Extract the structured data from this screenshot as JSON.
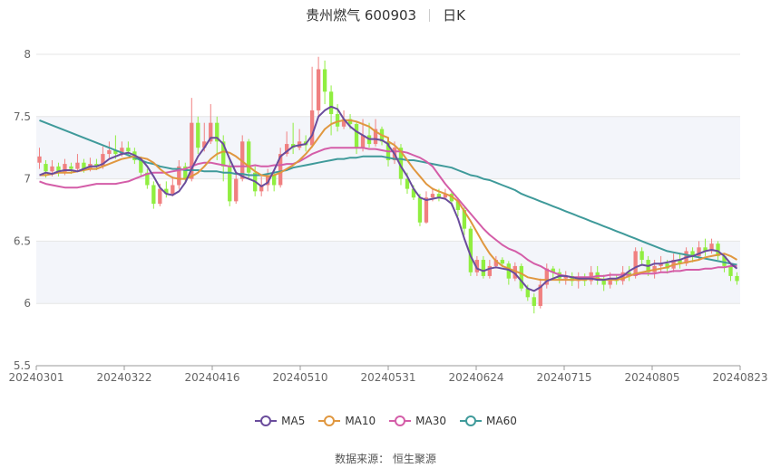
{
  "header": {
    "title": "贵州燃气 600903",
    "period": "日K"
  },
  "source_text": "数据来源： 恒生聚源",
  "colors": {
    "up": "#f08080",
    "down": "#90ee40",
    "ma5": "#6a4c9c",
    "ma10": "#e0973f",
    "ma30": "#d45da8",
    "ma60": "#3f9a9a",
    "grid_band": "#f3f5fa"
  },
  "chart_data": {
    "type": "candlestick",
    "ylim": [
      5.5,
      8
    ],
    "yticks": [
      "5.5",
      "6",
      "6.5",
      "7",
      "7.5",
      "8"
    ],
    "xticks": [
      "20240301",
      "20240322",
      "20240416",
      "20240510",
      "20240531",
      "20240624",
      "20240715",
      "20240805",
      "20240823"
    ],
    "legend": [
      {
        "name": "MA5",
        "color": "#6a4c9c"
      },
      {
        "name": "MA10",
        "color": "#e0973f"
      },
      {
        "name": "MA30",
        "color": "#d45da8"
      },
      {
        "name": "MA60",
        "color": "#3f9a9a"
      }
    ],
    "candles": [
      [
        7.13,
        7.18,
        7.25,
        7.08
      ],
      [
        7.12,
        7.06,
        7.15,
        7.01
      ],
      [
        7.06,
        7.1,
        7.15,
        7.02
      ],
      [
        7.1,
        7.05,
        7.13,
        7.02
      ],
      [
        7.05,
        7.12,
        7.16,
        7.03
      ],
      [
        7.1,
        7.08,
        7.13,
        7.04
      ],
      [
        7.08,
        7.13,
        7.2,
        7.06
      ],
      [
        7.13,
        7.08,
        7.16,
        7.05
      ],
      [
        7.08,
        7.12,
        7.17,
        7.06
      ],
      [
        7.12,
        7.1,
        7.16,
        7.07
      ],
      [
        7.1,
        7.2,
        7.26,
        7.08
      ],
      [
        7.2,
        7.23,
        7.3,
        7.17
      ],
      [
        7.23,
        7.2,
        7.35,
        7.16
      ],
      [
        7.2,
        7.25,
        7.3,
        7.18
      ],
      [
        7.25,
        7.22,
        7.3,
        7.19
      ],
      [
        7.22,
        7.15,
        7.25,
        7.12
      ],
      [
        7.15,
        7.05,
        7.18,
        7.02
      ],
      [
        7.05,
        6.95,
        7.08,
        6.92
      ],
      [
        6.95,
        6.8,
        6.98,
        6.76
      ],
      [
        6.8,
        6.92,
        6.96,
        6.78
      ],
      [
        6.92,
        6.88,
        6.98,
        6.85
      ],
      [
        6.88,
        6.95,
        7.02,
        6.86
      ],
      [
        6.95,
        7.1,
        7.15,
        6.92
      ],
      [
        7.1,
        7.0,
        7.13,
        6.97
      ],
      [
        7.0,
        7.45,
        7.65,
        6.98
      ],
      [
        7.45,
        7.25,
        7.5,
        7.2
      ],
      [
        7.25,
        7.3,
        7.45,
        7.22
      ],
      [
        7.3,
        7.45,
        7.6,
        7.28
      ],
      [
        7.45,
        7.3,
        7.5,
        7.15
      ],
      [
        7.3,
        7.1,
        7.35,
        6.98
      ],
      [
        7.1,
        6.82,
        7.15,
        6.78
      ],
      [
        6.82,
        7.0,
        7.05,
        6.8
      ],
      [
        7.0,
        7.3,
        7.35,
        6.98
      ],
      [
        7.3,
        7.05,
        7.32,
        7.0
      ],
      [
        7.05,
        6.9,
        7.1,
        6.86
      ],
      [
        6.9,
        6.95,
        7.02,
        6.86
      ],
      [
        6.95,
        7.03,
        7.08,
        6.9
      ],
      [
        7.03,
        6.95,
        7.06,
        6.9
      ],
      [
        6.95,
        7.2,
        7.25,
        6.93
      ],
      [
        7.2,
        7.28,
        7.38,
        7.18
      ],
      [
        7.28,
        7.25,
        7.45,
        7.2
      ],
      [
        7.25,
        7.3,
        7.4,
        7.23
      ],
      [
        7.3,
        7.27,
        7.35,
        7.22
      ],
      [
        7.27,
        7.55,
        7.9,
        7.25
      ],
      [
        7.55,
        7.88,
        7.98,
        7.5
      ],
      [
        7.88,
        7.7,
        7.95,
        7.6
      ],
      [
        7.7,
        7.52,
        7.75,
        7.35
      ],
      [
        7.52,
        7.42,
        7.6,
        7.38
      ],
      [
        7.42,
        7.48,
        7.55,
        7.4
      ],
      [
        7.48,
        7.44,
        7.52,
        7.4
      ],
      [
        7.44,
        7.25,
        7.46,
        7.2
      ],
      [
        7.25,
        7.35,
        7.48,
        7.22
      ],
      [
        7.35,
        7.28,
        7.45,
        7.25
      ],
      [
        7.28,
        7.4,
        7.48,
        7.26
      ],
      [
        7.4,
        7.3,
        7.42,
        7.27
      ],
      [
        7.3,
        7.15,
        7.32,
        7.1
      ],
      [
        7.15,
        7.25,
        7.3,
        7.12
      ],
      [
        7.25,
        7.0,
        7.28,
        6.95
      ],
      [
        7.0,
        6.92,
        7.05,
        6.88
      ],
      [
        6.92,
        6.85,
        6.95,
        6.83
      ],
      [
        6.85,
        6.65,
        6.88,
        6.62
      ],
      [
        6.65,
        6.85,
        6.9,
        6.64
      ],
      [
        6.85,
        6.88,
        6.93,
        6.82
      ],
      [
        6.88,
        6.85,
        6.92,
        6.82
      ],
      [
        6.85,
        6.88,
        6.92,
        6.83
      ],
      [
        6.88,
        6.82,
        6.9,
        6.78
      ],
      [
        6.82,
        6.75,
        6.85,
        6.7
      ],
      [
        6.75,
        6.6,
        6.78,
        6.55
      ],
      [
        6.6,
        6.25,
        6.62,
        6.22
      ],
      [
        6.25,
        6.35,
        6.38,
        6.22
      ],
      [
        6.35,
        6.22,
        6.38,
        6.2
      ],
      [
        6.22,
        6.3,
        6.35,
        6.2
      ],
      [
        6.3,
        6.35,
        6.38,
        6.28
      ],
      [
        6.35,
        6.32,
        6.37,
        6.3
      ],
      [
        6.32,
        6.2,
        6.34,
        6.15
      ],
      [
        6.2,
        6.3,
        6.33,
        6.18
      ],
      [
        6.3,
        6.12,
        6.32,
        6.1
      ],
      [
        6.12,
        6.05,
        6.15,
        6.02
      ],
      [
        6.05,
        5.98,
        6.08,
        5.92
      ],
      [
        5.98,
        6.15,
        6.2,
        5.96
      ],
      [
        6.15,
        6.28,
        6.32,
        6.12
      ],
      [
        6.28,
        6.25,
        6.3,
        6.2
      ],
      [
        6.25,
        6.2,
        6.28,
        6.16
      ],
      [
        6.2,
        6.22,
        6.26,
        6.15
      ],
      [
        6.22,
        6.18,
        6.25,
        6.14
      ],
      [
        6.18,
        6.2,
        6.25,
        6.12
      ],
      [
        6.2,
        6.18,
        6.24,
        6.14
      ],
      [
        6.18,
        6.25,
        6.3,
        6.15
      ],
      [
        6.25,
        6.2,
        6.3,
        6.15
      ],
      [
        6.2,
        6.15,
        6.23,
        6.1
      ],
      [
        6.15,
        6.2,
        6.25,
        6.12
      ],
      [
        6.2,
        6.18,
        6.23,
        6.15
      ],
      [
        6.18,
        6.25,
        6.3,
        6.15
      ],
      [
        6.25,
        6.22,
        6.3,
        6.18
      ],
      [
        6.22,
        6.42,
        6.45,
        6.2
      ],
      [
        6.42,
        6.35,
        6.45,
        6.3
      ],
      [
        6.35,
        6.25,
        6.38,
        6.22
      ],
      [
        6.25,
        6.3,
        6.35,
        6.2
      ],
      [
        6.3,
        6.32,
        6.38,
        6.25
      ],
      [
        6.32,
        6.28,
        6.35,
        6.24
      ],
      [
        6.28,
        6.35,
        6.4,
        6.25
      ],
      [
        6.35,
        6.32,
        6.4,
        6.28
      ],
      [
        6.32,
        6.42,
        6.45,
        6.3
      ],
      [
        6.42,
        6.38,
        6.45,
        6.33
      ],
      [
        6.38,
        6.45,
        6.5,
        6.35
      ],
      [
        6.45,
        6.42,
        6.52,
        6.38
      ],
      [
        6.42,
        6.48,
        6.52,
        6.4
      ],
      [
        6.48,
        6.38,
        6.5,
        6.35
      ],
      [
        6.38,
        6.3,
        6.4,
        6.25
      ],
      [
        6.3,
        6.22,
        6.33,
        6.18
      ],
      [
        6.22,
        6.18,
        6.25,
        6.15
      ]
    ],
    "ma5": [
      7.03,
      7.05,
      7.04,
      7.06,
      7.07,
      7.07,
      7.06,
      7.08,
      7.1,
      7.1,
      7.12,
      7.16,
      7.18,
      7.2,
      7.21,
      7.19,
      7.16,
      7.1,
      7.02,
      6.93,
      6.88,
      6.87,
      6.9,
      6.97,
      7.08,
      7.18,
      7.25,
      7.33,
      7.33,
      7.28,
      7.16,
      7.05,
      7.02,
      7.0,
      6.98,
      6.94,
      6.97,
      7.07,
      7.18,
      7.22,
      7.26,
      7.27,
      7.28,
      7.35,
      7.5,
      7.55,
      7.58,
      7.56,
      7.48,
      7.42,
      7.38,
      7.35,
      7.32,
      7.32,
      7.31,
      7.28,
      7.27,
      7.2,
      7.1,
      7.02,
      6.92,
      6.85,
      6.83,
      6.84,
      6.85,
      6.84,
      6.8,
      6.68,
      6.52,
      6.38,
      6.28,
      6.26,
      6.28,
      6.29,
      6.28,
      6.27,
      6.24,
      6.18,
      6.12,
      6.1,
      6.13,
      6.18,
      6.2,
      6.22,
      6.22,
      6.21,
      6.2,
      6.2,
      6.2,
      6.19,
      6.19,
      6.2,
      6.2,
      6.22,
      6.26,
      6.29,
      6.31,
      6.3,
      6.32,
      6.32,
      6.33,
      6.34,
      6.35,
      6.37,
      6.38,
      6.4,
      6.42,
      6.43,
      6.42,
      6.38,
      6.32,
      6.28
    ],
    "ma10": [
      7.03,
      7.03,
      7.04,
      7.05,
      7.05,
      7.05,
      7.06,
      7.07,
      7.08,
      7.08,
      7.1,
      7.12,
      7.14,
      7.16,
      7.17,
      7.18,
      7.17,
      7.16,
      7.13,
      7.08,
      7.04,
      7.01,
      7.0,
      7.0,
      7.02,
      7.05,
      7.1,
      7.16,
      7.2,
      7.22,
      7.21,
      7.18,
      7.14,
      7.1,
      7.06,
      7.03,
      7.02,
      7.03,
      7.05,
      7.08,
      7.11,
      7.15,
      7.2,
      7.26,
      7.33,
      7.4,
      7.44,
      7.46,
      7.47,
      7.47,
      7.46,
      7.44,
      7.42,
      7.38,
      7.35,
      7.33,
      7.3,
      7.27,
      7.22,
      7.15,
      7.08,
      7.02,
      6.96,
      6.92,
      6.9,
      6.88,
      6.86,
      6.82,
      6.74,
      6.66,
      6.57,
      6.48,
      6.4,
      6.34,
      6.3,
      6.28,
      6.26,
      6.24,
      6.21,
      6.2,
      6.19,
      6.19,
      6.19,
      6.19,
      6.19,
      6.19,
      6.19,
      6.19,
      6.2,
      6.2,
      6.19,
      6.19,
      6.19,
      6.2,
      6.22,
      6.24,
      6.25,
      6.26,
      6.27,
      6.28,
      6.29,
      6.31,
      6.32,
      6.33,
      6.34,
      6.35,
      6.37,
      6.38,
      6.39,
      6.4,
      6.38,
      6.35
    ],
    "ma30": [
      6.98,
      6.96,
      6.95,
      6.94,
      6.93,
      6.93,
      6.93,
      6.94,
      6.95,
      6.96,
      6.96,
      6.96,
      6.96,
      6.97,
      6.98,
      7.0,
      7.02,
      7.04,
      7.05,
      7.05,
      7.05,
      7.06,
      7.07,
      7.08,
      7.1,
      7.12,
      7.13,
      7.13,
      7.12,
      7.11,
      7.1,
      7.1,
      7.1,
      7.1,
      7.11,
      7.1,
      7.1,
      7.11,
      7.11,
      7.12,
      7.12,
      7.14,
      7.17,
      7.2,
      7.22,
      7.24,
      7.25,
      7.25,
      7.25,
      7.25,
      7.25,
      7.25,
      7.24,
      7.24,
      7.23,
      7.22,
      7.22,
      7.22,
      7.22,
      7.21,
      7.19,
      7.17,
      7.14,
      7.1,
      7.03,
      6.96,
      6.9,
      6.84,
      6.78,
      6.72,
      6.66,
      6.6,
      6.55,
      6.51,
      6.47,
      6.44,
      6.42,
      6.39,
      6.35,
      6.32,
      6.3,
      6.27,
      6.25,
      6.23,
      6.22,
      6.21,
      6.21,
      6.21,
      6.21,
      6.22,
      6.22,
      6.23,
      6.23,
      6.23,
      6.23,
      6.23,
      6.24,
      6.24,
      6.24,
      6.25,
      6.25,
      6.26,
      6.26,
      6.27,
      6.27,
      6.27,
      6.28,
      6.28,
      6.29,
      6.29,
      6.3,
      6.3
    ],
    "ma60": [
      7.47,
      7.45,
      7.43,
      7.41,
      7.39,
      7.37,
      7.35,
      7.33,
      7.31,
      7.29,
      7.27,
      7.25,
      7.23,
      7.21,
      7.19,
      7.17,
      7.15,
      7.13,
      7.12,
      7.1,
      7.09,
      7.08,
      7.08,
      7.07,
      7.07,
      7.07,
      7.06,
      7.06,
      7.06,
      7.05,
      7.05,
      7.04,
      7.04,
      7.03,
      7.03,
      7.03,
      7.04,
      7.05,
      7.06,
      7.07,
      7.09,
      7.1,
      7.11,
      7.12,
      7.13,
      7.14,
      7.15,
      7.16,
      7.16,
      7.17,
      7.17,
      7.18,
      7.18,
      7.18,
      7.18,
      7.17,
      7.17,
      7.16,
      7.16,
      7.15,
      7.15,
      7.14,
      7.13,
      7.12,
      7.11,
      7.1,
      7.09,
      7.07,
      7.05,
      7.03,
      7.02,
      7.0,
      6.99,
      6.97,
      6.95,
      6.93,
      6.91,
      6.88,
      6.86,
      6.84,
      6.82,
      6.8,
      6.78,
      6.76,
      6.74,
      6.72,
      6.7,
      6.68,
      6.66,
      6.64,
      6.62,
      6.6,
      6.58,
      6.56,
      6.54,
      6.52,
      6.5,
      6.48,
      6.46,
      6.44,
      6.42,
      6.41,
      6.4,
      6.39,
      6.38,
      6.37,
      6.36,
      6.35,
      6.34,
      6.33,
      6.32,
      6.31
    ]
  }
}
